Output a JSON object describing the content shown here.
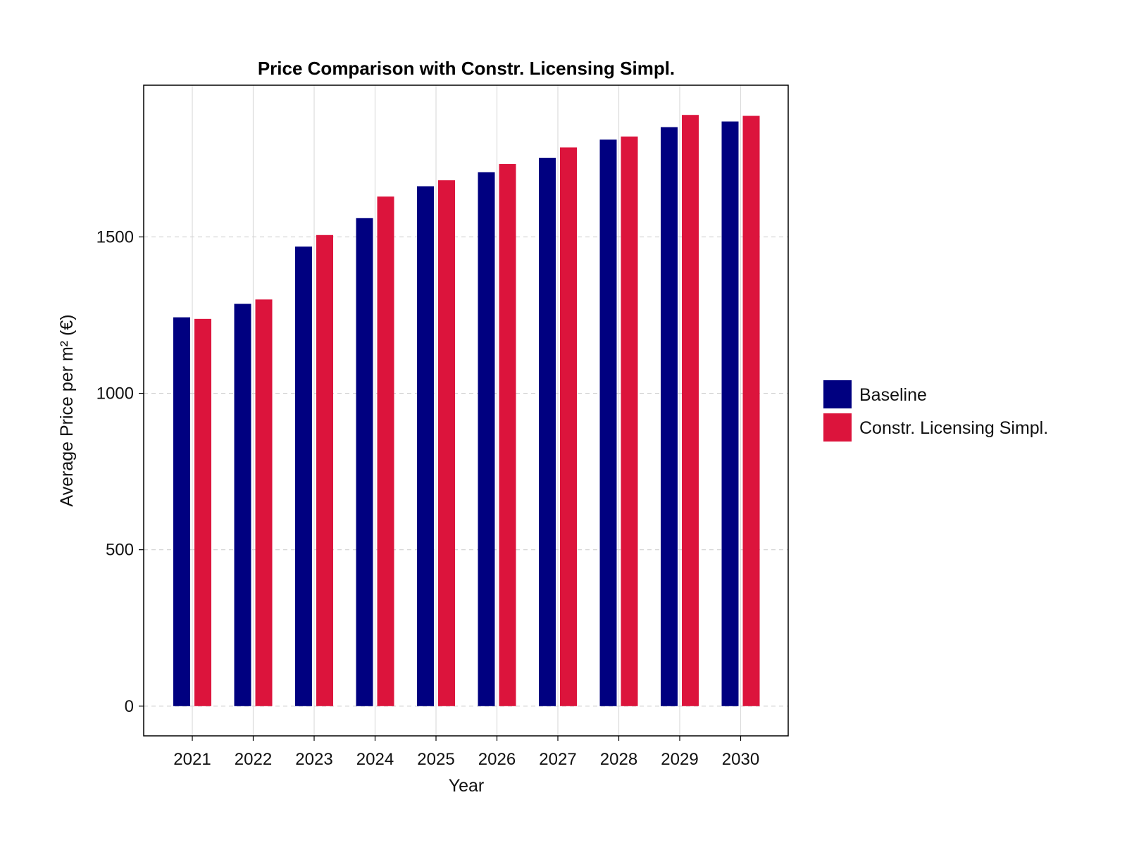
{
  "chart_data": {
    "type": "bar",
    "title": "Price Comparison with Constr. Licensing Simpl.",
    "xlabel": "Year",
    "ylabel": "Average Price per m² (€)",
    "categories": [
      "2021",
      "2022",
      "2023",
      "2024",
      "2025",
      "2026",
      "2027",
      "2028",
      "2029",
      "2030"
    ],
    "series": [
      {
        "name": "Baseline",
        "color": "#000080",
        "values": [
          1243,
          1286,
          1469,
          1560,
          1662,
          1707,
          1753,
          1811,
          1851,
          1869
        ]
      },
      {
        "name": "Constr. Licensing Simpl.",
        "color": "#DC143C",
        "values": [
          1238,
          1300,
          1506,
          1629,
          1681,
          1733,
          1786,
          1821,
          1890,
          1887
        ]
      }
    ],
    "ylim": [
      -95,
      1985
    ],
    "yticks": [
      0,
      500,
      1000,
      1500
    ],
    "grid": true,
    "legend_position": "right"
  }
}
